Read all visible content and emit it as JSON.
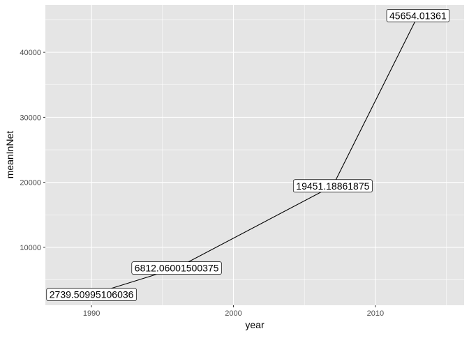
{
  "chart_data": {
    "type": "line",
    "xlabel": "year",
    "ylabel": "meanInNet",
    "title": "",
    "xlim": [
      1986.75,
      2016.25
    ],
    "ylim": [
      1092.8,
      47300.7
    ],
    "x_ticks": [
      1990,
      2000,
      2010
    ],
    "x_tick_labels": [
      "1990",
      "2000",
      "2010"
    ],
    "y_ticks": [
      10000,
      20000,
      30000,
      40000
    ],
    "y_tick_labels": [
      "10000",
      "20000",
      "30000",
      "40000"
    ],
    "grid": true,
    "legend": "none",
    "points": [
      {
        "x": 1990,
        "y": 2739.50995106036,
        "label": "2739.50995106036"
      },
      {
        "x": 1996,
        "y": 6812.06001500375,
        "label": "6812.06001500375"
      },
      {
        "x": 2007,
        "y": 19451.18861875,
        "label": "19451.18861875"
      },
      {
        "x": 2013,
        "y": 45654.01361,
        "label": "45654.01361"
      }
    ],
    "colors": {
      "panel_background": "#e5e5e5",
      "grid_major": "#ffffff",
      "line": "#000000",
      "label_fill": "#ffffff"
    }
  }
}
